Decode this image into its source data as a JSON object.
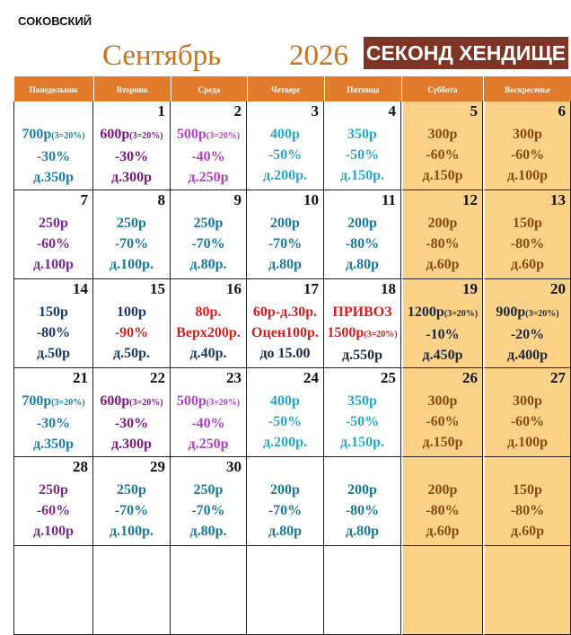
{
  "header": {
    "place": "СОКОВСКИЙ",
    "month": "Сентябрь",
    "year": "2026",
    "brand": "СЕКОНД ХЕНДИЩЕ"
  },
  "weekdays": [
    "Понедельник",
    "Вторник",
    "Среда",
    "Четверг",
    "Пятница",
    "Суббота",
    "Воскресенье"
  ],
  "rows": [
    [
      {
        "color": "#1d7fa6",
        "lines": [
          {
            "text": "700р",
            "note": "(3=20%)"
          },
          {
            "text": "-30%"
          },
          {
            "text": "д.350р"
          }
        ]
      },
      {
        "day": "1",
        "color": "#7a1a80",
        "lines": [
          {
            "text": "600р",
            "note": "(3=20%)"
          },
          {
            "text": "-30%"
          },
          {
            "text": "д.300р"
          }
        ]
      },
      {
        "day": "2",
        "color": "#b040c4",
        "lines": [
          {
            "text": "500р",
            "note": "(3=20%)"
          },
          {
            "text": "-40%"
          },
          {
            "text": "д.250р"
          }
        ]
      },
      {
        "day": "3",
        "color": "#27a8c8",
        "lines": [
          {
            "text": "400р"
          },
          {
            "text": "-50%"
          },
          {
            "text": "д.200р."
          }
        ]
      },
      {
        "day": "4",
        "color": "#27a8c8",
        "lines": [
          {
            "text": "350р"
          },
          {
            "text": "-50%"
          },
          {
            "text": "д.150р."
          }
        ]
      },
      {
        "day": "5",
        "color": "#8a4a14",
        "lines": [
          {
            "text": "300р"
          },
          {
            "text": "-60%"
          },
          {
            "text": "д.150р"
          }
        ]
      },
      {
        "day": "6",
        "color": "#8a4a14",
        "lines": [
          {
            "text": "300р"
          },
          {
            "text": "-60%"
          },
          {
            "text": "д.100р"
          }
        ]
      }
    ],
    [
      {
        "day": "7",
        "color": "#7a2a8e",
        "lines": [
          {
            "text": "250р"
          },
          {
            "text": "-60%"
          },
          {
            "text": "д.100р"
          }
        ]
      },
      {
        "day": "8",
        "color": "#1a7a9a",
        "lines": [
          {
            "text": "250р"
          },
          {
            "text": "-70%"
          },
          {
            "text": "д.100р."
          }
        ]
      },
      {
        "day": "9",
        "color": "#1a7a9a",
        "lines": [
          {
            "text": "250р"
          },
          {
            "text": "-70%"
          },
          {
            "text": "д.80р."
          }
        ]
      },
      {
        "day": "10",
        "color": "#1a7a9a",
        "lines": [
          {
            "text": "200р"
          },
          {
            "text": "-70%"
          },
          {
            "text": "д.80р"
          }
        ]
      },
      {
        "day": "11",
        "color": "#1a7a9a",
        "lines": [
          {
            "text": "200р"
          },
          {
            "text": "-80%"
          },
          {
            "text": "д.80р"
          }
        ]
      },
      {
        "day": "12",
        "color": "#8a4a14",
        "lines": [
          {
            "text": "200р"
          },
          {
            "text": "-80%"
          },
          {
            "text": "д.60р"
          }
        ]
      },
      {
        "day": "13",
        "color": "#8a4a14",
        "lines": [
          {
            "text": "150р"
          },
          {
            "text": "-80%"
          },
          {
            "text": "д.60р"
          }
        ]
      }
    ],
    [
      {
        "day": "14",
        "color": "#1a3a6a",
        "lines": [
          {
            "text": "150р"
          },
          {
            "text": "-80%"
          },
          {
            "text": "д.50р"
          }
        ]
      },
      {
        "day": "15",
        "color": "#1a3a6a",
        "lines": [
          {
            "text": "100р"
          },
          {
            "text": "-90%",
            "color": "#d42020"
          },
          {
            "text": "д.50р."
          }
        ]
      },
      {
        "day": "16",
        "color": "#d42020",
        "lines": [
          {
            "text": "80р."
          },
          {
            "text": "Верх200р."
          },
          {
            "text": "д.40р.",
            "color": "#1a3a6a"
          }
        ]
      },
      {
        "day": "17",
        "color": "#d42020",
        "lines": [
          {
            "text": "60р-д.30р."
          },
          {
            "text": "Оцен100р."
          },
          {
            "text": "до 15.00",
            "color": "#1a2a40"
          }
        ]
      },
      {
        "day": "18",
        "color": "#d42020",
        "lines": [
          {
            "text": "ПРИВОЗ"
          },
          {
            "text": "1500р",
            "note": "(3=20%)"
          },
          {
            "text": "д.550р",
            "color": "#1a2a40"
          }
        ]
      },
      {
        "day": "19",
        "color": "#1a2a40",
        "lines": [
          {
            "text": "1200р",
            "note": "(3=20%)"
          },
          {
            "text": "-10%"
          },
          {
            "text": "д.450р"
          }
        ]
      },
      {
        "day": "20",
        "color": "#1a2a40",
        "lines": [
          {
            "text": "900р",
            "note": "(3=20%)"
          },
          {
            "text": "-20%"
          },
          {
            "text": "д.400р"
          }
        ]
      }
    ],
    [
      {
        "day": "21",
        "color": "#1d7fa6",
        "lines": [
          {
            "text": "700р",
            "note": "(3=20%)"
          },
          {
            "text": "-30%"
          },
          {
            "text": "д.350р"
          }
        ]
      },
      {
        "day": "22",
        "color": "#7a1a80",
        "lines": [
          {
            "text": "600р",
            "note": "(3=20%)"
          },
          {
            "text": "-30%"
          },
          {
            "text": "д.300р"
          }
        ]
      },
      {
        "day": "23",
        "color": "#b040c4",
        "lines": [
          {
            "text": "500р",
            "note": "(3=20%)"
          },
          {
            "text": "-40%"
          },
          {
            "text": "д.250р"
          }
        ]
      },
      {
        "day": "24",
        "color": "#27a8c8",
        "lines": [
          {
            "text": "400р"
          },
          {
            "text": "-50%"
          },
          {
            "text": "д.200р."
          }
        ]
      },
      {
        "day": "25",
        "color": "#27a8c8",
        "lines": [
          {
            "text": "350р"
          },
          {
            "text": "-50%"
          },
          {
            "text": "д.150р."
          }
        ]
      },
      {
        "day": "26",
        "color": "#8a4a14",
        "lines": [
          {
            "text": "300р"
          },
          {
            "text": "-60%"
          },
          {
            "text": "д.150р"
          }
        ]
      },
      {
        "day": "27",
        "color": "#8a4a14",
        "lines": [
          {
            "text": "300р"
          },
          {
            "text": "-60%"
          },
          {
            "text": "д.100р"
          }
        ]
      }
    ],
    [
      {
        "day": "28",
        "color": "#7a2a8e",
        "lines": [
          {
            "text": "250р"
          },
          {
            "text": "-60%"
          },
          {
            "text": "д.100р"
          }
        ]
      },
      {
        "day": "29",
        "color": "#1a7a9a",
        "lines": [
          {
            "text": "250р"
          },
          {
            "text": "-70%"
          },
          {
            "text": "д.100р."
          }
        ]
      },
      {
        "day": "30",
        "color": "#1a7a9a",
        "lines": [
          {
            "text": "250р"
          },
          {
            "text": "-70%"
          },
          {
            "text": "д.80р."
          }
        ]
      },
      {
        "color": "#1a7a9a",
        "lines": [
          {
            "text": "200р"
          },
          {
            "text": "-70%"
          },
          {
            "text": "д.80р"
          }
        ]
      },
      {
        "color": "#1a7a9a",
        "lines": [
          {
            "text": "200р"
          },
          {
            "text": "-80%"
          },
          {
            "text": "д.80р"
          }
        ]
      },
      {
        "color": "#8a4a14",
        "lines": [
          {
            "text": "200р"
          },
          {
            "text": "-80%"
          },
          {
            "text": "д.60р"
          }
        ]
      },
      {
        "color": "#8a4a14",
        "lines": [
          {
            "text": "150р"
          },
          {
            "text": "-80%"
          },
          {
            "text": "д.60р"
          }
        ]
      }
    ]
  ]
}
